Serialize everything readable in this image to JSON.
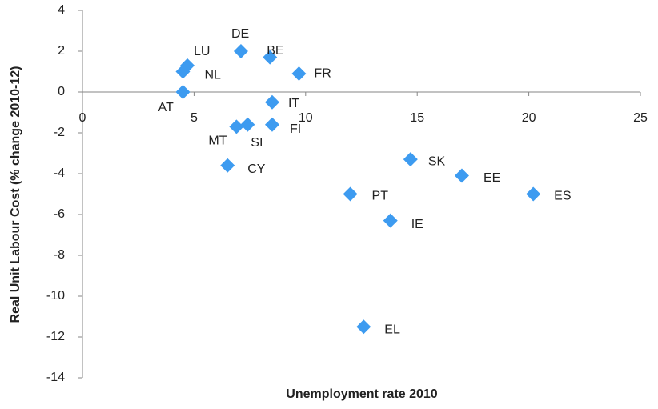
{
  "chart_data": {
    "type": "scatter",
    "x_label": "Unemployment rate 2010",
    "y_label": "Real Unit Labour Cost (% change 2010-12)",
    "color": "#3d9bf0",
    "xlim": [
      0,
      25
    ],
    "xticks": [
      0,
      5,
      10,
      15,
      20,
      25
    ],
    "ylim": [
      -14,
      4
    ],
    "yticks": [
      -14,
      -12,
      -10,
      -8,
      -6,
      -4,
      -2,
      0,
      2,
      4
    ],
    "labels": [
      "DE",
      "BE",
      "FR",
      "LU",
      "NL",
      "AT",
      "IT",
      "MT",
      "SI",
      "FI",
      "CY",
      "SK",
      "EE",
      "ES",
      "PT",
      "IE",
      "EL"
    ],
    "x": [
      7.1,
      8.4,
      9.7,
      4.7,
      4.5,
      4.5,
      8.5,
      6.9,
      7.4,
      8.5,
      6.5,
      14.7,
      17.0,
      20.2,
      12.0,
      13.8,
      12.6
    ],
    "values": [
      2.0,
      1.7,
      0.9,
      1.3,
      1.0,
      0.0,
      -0.5,
      -1.7,
      -1.6,
      -1.6,
      -3.6,
      -3.3,
      -4.1,
      -5.0,
      -5.0,
      -6.3,
      -11.5
    ]
  }
}
